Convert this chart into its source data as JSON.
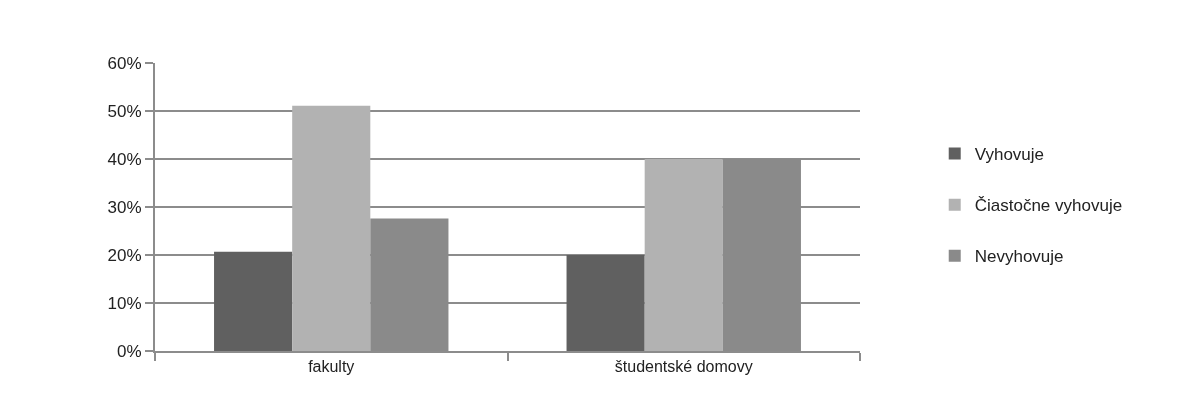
{
  "chart_data": {
    "type": "bar",
    "categories": [
      "fakulty",
      "študentské domovy"
    ],
    "series": [
      {
        "name": "Vyhovuje",
        "color": "#606060",
        "values": [
          20.7,
          20
        ]
      },
      {
        "name": "Čiastočne vyhovuje",
        "color": "#b2b2b2",
        "values": [
          51.1,
          40
        ]
      },
      {
        "name": "Nevyhovuje",
        "color": "#8a8a8a",
        "values": [
          27.6,
          40
        ]
      }
    ],
    "ylim": [
      0,
      60
    ],
    "yticks": [
      {
        "value": 0,
        "label": "0%"
      },
      {
        "value": 10,
        "label": "10%"
      },
      {
        "value": 20,
        "label": "20%"
      },
      {
        "value": 30,
        "label": "30%"
      },
      {
        "value": 40,
        "label": "40%"
      },
      {
        "value": 50,
        "label": "50%"
      },
      {
        "value": 60,
        "label": "60%"
      }
    ],
    "grid": "y",
    "legend": "right"
  }
}
